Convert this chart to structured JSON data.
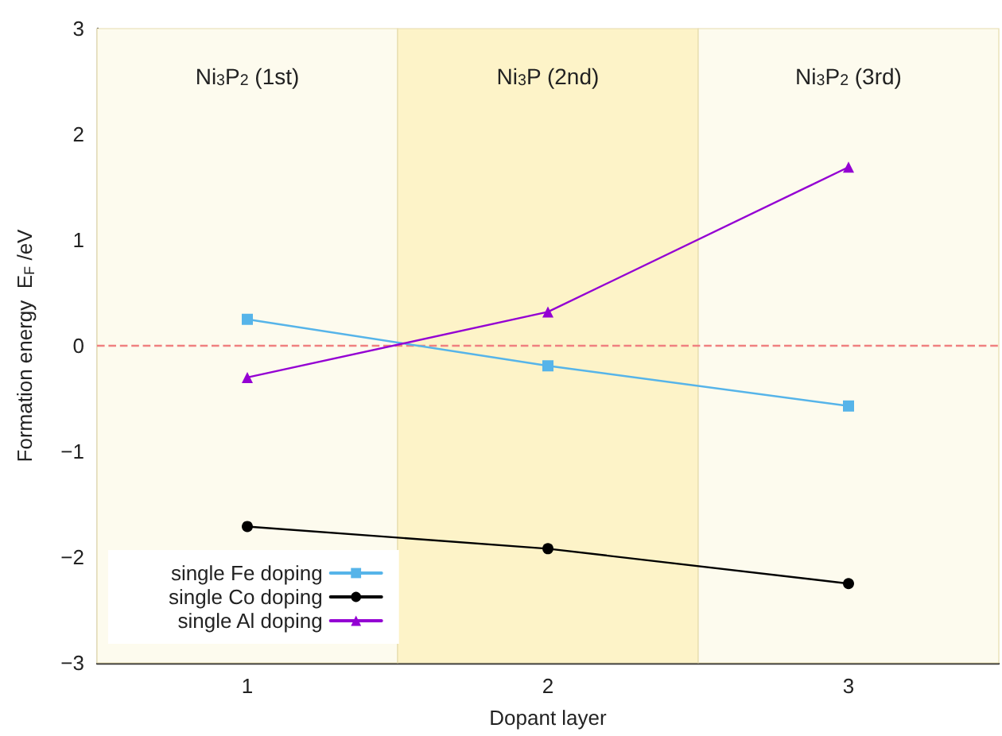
{
  "chart_data": {
    "type": "line",
    "xlabel": "Dopant layer",
    "ylabel": "Formation energy  E$_{F}$ /eV",
    "x": [
      1,
      2,
      3
    ],
    "xlim": [
      0.5,
      3.5
    ],
    "xticks": [
      1,
      2,
      3
    ],
    "ylim": [
      -3,
      3
    ],
    "yticks": [
      -3,
      -2,
      -1,
      0,
      1,
      2,
      3
    ],
    "series": [
      {
        "name": "single Fe doping",
        "color": "#56b4e9",
        "marker": "square",
        "values": [
          0.25,
          -0.19,
          -0.57
        ]
      },
      {
        "name": "single Co doping",
        "color": "#000000",
        "marker": "circle",
        "values": [
          -1.71,
          -1.92,
          -2.25
        ]
      },
      {
        "name": "single Al doping",
        "color": "#9400d3",
        "marker": "triangle",
        "values": [
          -0.3,
          0.32,
          1.69
        ]
      }
    ],
    "bands": [
      {
        "axis": "x",
        "from": 0.5,
        "to": 1.5,
        "label": "Ni$_{3}$P$_{2}$ (1st)",
        "color": "#fdfbee"
      },
      {
        "axis": "x",
        "from": 1.5,
        "to": 2.5,
        "label": "Ni$_{3}$P (2nd)",
        "color": "#fdf3c8"
      },
      {
        "axis": "x",
        "from": 2.5,
        "to": 3.5,
        "label": "Ni$_{3}$P$_{2}$ (3rd)",
        "color": "#fdfbee"
      }
    ],
    "ref_lines": [
      {
        "axis": "y",
        "value": 0,
        "color": "#f08080",
        "line_style": "dashed"
      }
    ],
    "legend": "bottom left",
    "line_style": "solid"
  }
}
